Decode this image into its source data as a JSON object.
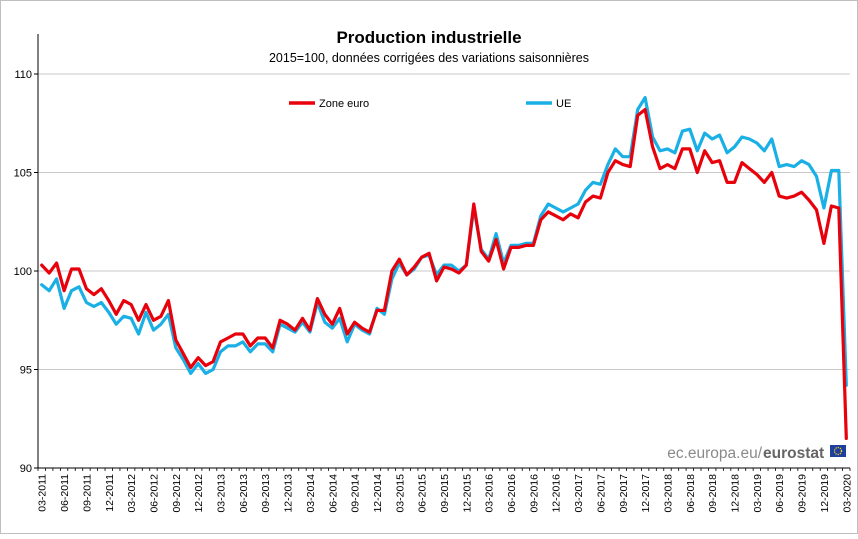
{
  "chart_data": {
    "type": "line",
    "title": "Production industrielle",
    "subtitle": "2015=100, données corrigées des variations saisonnières",
    "xlabel": "",
    "ylabel": "",
    "ylim": [
      90,
      110
    ],
    "yticks": [
      "90",
      "95",
      "100",
      "105",
      "110"
    ],
    "grid": "horizontal",
    "legend_position": "top",
    "x_tick_labels": [
      "03-2011",
      "06-2011",
      "09-2011",
      "12-2011",
      "03-2012",
      "06-2012",
      "09-2012",
      "12-2012",
      "03-2013",
      "06-2013",
      "09-2013",
      "12-2013",
      "03-2014",
      "06-2014",
      "09-2014",
      "12-2014",
      "03-2015",
      "06-2015",
      "09-2015",
      "12-2015",
      "03-2016",
      "06-2016",
      "09-2016",
      "12-2016",
      "03-2017",
      "06-2017",
      "09-2017",
      "12-2017",
      "03-2018",
      "06-2018",
      "09-2018",
      "12-2018",
      "03-2019",
      "06-2019",
      "09-2019",
      "12-2019",
      "03-2020"
    ],
    "x_start": "03-2011",
    "x_end": "03-2020",
    "series": [
      {
        "name": "Zone euro",
        "color": "#e8000b",
        "values": [
          100.3,
          99.9,
          100.4,
          99.0,
          100.1,
          100.1,
          99.1,
          98.8,
          99.1,
          98.5,
          97.8,
          98.5,
          98.3,
          97.5,
          98.3,
          97.5,
          97.7,
          98.5,
          96.5,
          95.8,
          95.1,
          95.6,
          95.2,
          95.4,
          96.4,
          96.6,
          96.8,
          96.8,
          96.2,
          96.6,
          96.6,
          96.1,
          97.5,
          97.3,
          97.0,
          97.6,
          97.0,
          98.6,
          97.8,
          97.3,
          98.1,
          96.8,
          97.4,
          97.1,
          96.9,
          98.0,
          98.0,
          100.0,
          100.6,
          99.8,
          100.2,
          100.7,
          100.9,
          99.5,
          100.2,
          100.1,
          99.9,
          100.3,
          103.4,
          101.0,
          100.5,
          101.6,
          100.1,
          101.2,
          101.2,
          101.3,
          101.3,
          102.6,
          103.0,
          102.8,
          102.6,
          102.9,
          102.7,
          103.5,
          103.8,
          103.7,
          105.0,
          105.6,
          105.4,
          105.3,
          107.9,
          108.2,
          106.3,
          105.2,
          105.4,
          105.2,
          106.2,
          106.2,
          105.0,
          106.1,
          105.5,
          105.6,
          104.5,
          104.5,
          105.5,
          105.2,
          104.9,
          104.5,
          105.0,
          103.8,
          103.7,
          103.8,
          104.0,
          103.6,
          103.1,
          101.4,
          103.3,
          103.2,
          91.5
        ]
      },
      {
        "name": "UE",
        "color": "#1ab0e6",
        "values": [
          99.3,
          99.0,
          99.6,
          98.1,
          99.0,
          99.2,
          98.4,
          98.2,
          98.4,
          97.9,
          97.3,
          97.7,
          97.6,
          96.8,
          97.9,
          97.0,
          97.3,
          97.8,
          96.1,
          95.5,
          94.8,
          95.3,
          94.8,
          95.0,
          95.9,
          96.2,
          96.2,
          96.4,
          95.9,
          96.3,
          96.3,
          95.9,
          97.3,
          97.1,
          96.9,
          97.4,
          96.9,
          98.4,
          97.4,
          97.1,
          97.6,
          96.4,
          97.3,
          97.0,
          96.8,
          98.1,
          97.8,
          99.6,
          100.4,
          99.8,
          100.1,
          100.7,
          100.8,
          99.8,
          100.3,
          100.3,
          100.0,
          100.3,
          103.2,
          101.1,
          100.6,
          101.9,
          100.4,
          101.3,
          101.3,
          101.4,
          101.4,
          102.8,
          103.4,
          103.2,
          103.0,
          103.2,
          103.4,
          104.1,
          104.5,
          104.4,
          105.4,
          106.2,
          105.8,
          105.8,
          108.2,
          108.8,
          106.8,
          106.1,
          106.2,
          106.0,
          107.1,
          107.2,
          106.1,
          107.0,
          106.7,
          106.9,
          106.0,
          106.3,
          106.8,
          106.7,
          106.5,
          106.1,
          106.7,
          105.3,
          105.4,
          105.3,
          105.6,
          105.4,
          104.8,
          103.2,
          105.1,
          105.1,
          94.2
        ]
      }
    ]
  },
  "source": {
    "url_text": "ec.europa.eu/",
    "brand_text": "eurostat"
  }
}
